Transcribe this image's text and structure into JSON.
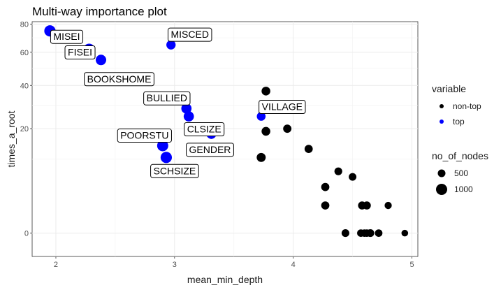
{
  "chart_data": {
    "type": "scatter",
    "title": "Multi-way importance plot",
    "xlabel": "mean_min_depth",
    "ylabel": "times_a_root",
    "xlim": [
      1.8,
      5.05
    ],
    "ylim": [
      -1,
      82
    ],
    "y_scale": "sqrt",
    "x_ticks": [
      2,
      3,
      4,
      5
    ],
    "y_ticks": [
      0,
      20,
      40,
      60,
      80
    ],
    "grid": true,
    "legend_position": "right",
    "legend": {
      "color_title": "variable",
      "color_entries": [
        {
          "name": "non-top",
          "color": "#000000"
        },
        {
          "name": "top",
          "color": "#0000ff"
        }
      ],
      "size_title": "no_of_nodes",
      "size_entries": [
        500,
        1000
      ]
    },
    "points": [
      {
        "label": "MISEI",
        "x": 1.95,
        "y": 75,
        "nodes": 1150,
        "variable": "top"
      },
      {
        "label": "FISEI",
        "x": 2.28,
        "y": 62,
        "nodes": 1100,
        "variable": "top"
      },
      {
        "label": "BOOKSHOME",
        "x": 2.38,
        "y": 55,
        "nodes": 950,
        "variable": "top"
      },
      {
        "label": "MISCED",
        "x": 2.97,
        "y": 65,
        "nodes": 700,
        "variable": "top"
      },
      {
        "label": "BULLIED",
        "x": 3.1,
        "y": 28.5,
        "nodes": 900,
        "variable": "top"
      },
      {
        "label": "CLSIZE",
        "x": 3.12,
        "y": 25,
        "nodes": 900,
        "variable": "top"
      },
      {
        "label": "GENDER",
        "x": 3.31,
        "y": 18,
        "nodes": 800,
        "variable": "top"
      },
      {
        "label": "POORSTU",
        "x": 2.9,
        "y": 14,
        "nodes": 1100,
        "variable": "top"
      },
      {
        "label": "SCHSIZE",
        "x": 2.93,
        "y": 10.5,
        "nodes": 1150,
        "variable": "top"
      },
      {
        "label": "VILLAGE",
        "x": 3.73,
        "y": 25,
        "nodes": 600,
        "variable": "top"
      },
      {
        "label": "",
        "x": 3.77,
        "y": 37,
        "nodes": 600,
        "variable": "non-top"
      },
      {
        "label": "",
        "x": 3.77,
        "y": 19,
        "nodes": 600,
        "variable": "non-top"
      },
      {
        "label": "",
        "x": 3.95,
        "y": 20,
        "nodes": 520,
        "variable": "non-top"
      },
      {
        "label": "",
        "x": 3.73,
        "y": 10.5,
        "nodes": 650,
        "variable": "non-top"
      },
      {
        "label": "",
        "x": 4.13,
        "y": 13,
        "nodes": 500,
        "variable": "non-top"
      },
      {
        "label": "",
        "x": 4.38,
        "y": 7,
        "nodes": 440,
        "variable": "non-top"
      },
      {
        "label": "",
        "x": 4.5,
        "y": 5.8,
        "nodes": 420,
        "variable": "non-top"
      },
      {
        "label": "",
        "x": 4.27,
        "y": 3.9,
        "nodes": 500,
        "variable": "non-top"
      },
      {
        "label": "",
        "x": 4.27,
        "y": 1.4,
        "nodes": 500,
        "variable": "non-top"
      },
      {
        "label": "",
        "x": 4.58,
        "y": 1.4,
        "nodes": 480,
        "variable": "non-top"
      },
      {
        "label": "",
        "x": 4.62,
        "y": 1.4,
        "nodes": 480,
        "variable": "non-top"
      },
      {
        "label": "",
        "x": 4.8,
        "y": 1.4,
        "nodes": 350,
        "variable": "non-top"
      },
      {
        "label": "",
        "x": 4.44,
        "y": 0,
        "nodes": 430,
        "variable": "non-top"
      },
      {
        "label": "",
        "x": 4.57,
        "y": 0,
        "nodes": 400,
        "variable": "non-top"
      },
      {
        "label": "",
        "x": 4.6,
        "y": 0,
        "nodes": 400,
        "variable": "non-top"
      },
      {
        "label": "",
        "x": 4.62,
        "y": 0,
        "nodes": 400,
        "variable": "non-top"
      },
      {
        "label": "",
        "x": 4.65,
        "y": 0,
        "nodes": 430,
        "variable": "non-top"
      },
      {
        "label": "",
        "x": 4.72,
        "y": 0,
        "nodes": 400,
        "variable": "non-top"
      },
      {
        "label": "",
        "x": 4.94,
        "y": 0,
        "nodes": 280,
        "variable": "non-top"
      }
    ]
  }
}
